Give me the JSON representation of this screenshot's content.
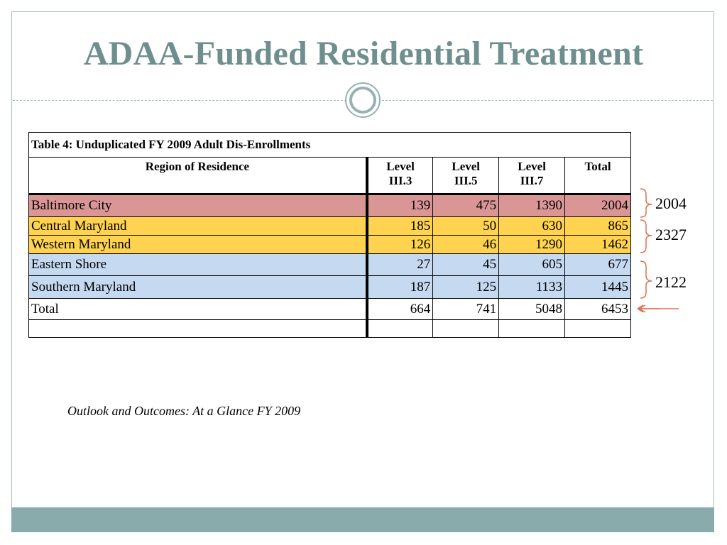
{
  "slide": {
    "title": "ADAA-Funded Residential Treatment",
    "source_caption": "Outlook and Outcomes: At a Glance FY 2009"
  },
  "table": {
    "caption": "Table 4:  Unduplicated FY 2009 Adult Dis-Enrollments",
    "headers": {
      "region": "Region of Residence",
      "l33": "Level III.3",
      "l35": "Level III.5",
      "l37": "Level III.7",
      "total": "Total"
    },
    "rows": [
      {
        "region": "Baltimore City",
        "l33": "139",
        "l35": "475",
        "l37": "1390",
        "total": "2004"
      },
      {
        "region": "Central Maryland",
        "l33": "185",
        "l35": "50",
        "l37": "630",
        "total": "865"
      },
      {
        "region": "Western Maryland",
        "l33": "126",
        "l35": "46",
        "l37": "1290",
        "total": "1462"
      },
      {
        "region": "Eastern Shore",
        "l33": "27",
        "l35": "45",
        "l37": "605",
        "total": "677"
      },
      {
        "region": "Southern Maryland",
        "l33": "187",
        "l35": "125",
        "l37": "1133",
        "total": "1445"
      }
    ],
    "total_row": {
      "region": "Total",
      "l33": "664",
      "l35": "741",
      "l37": "5048",
      "total": "6453"
    }
  },
  "annotations": {
    "group1": "2004",
    "group2": "2327",
    "group3": "2122"
  },
  "colors": {
    "title": "#6f8f8f",
    "footer_bar": "#8aabab",
    "row_baltimore": "#da9694",
    "row_central_western": "#ffd34f",
    "row_eastern_southern": "#c5d9f1",
    "annotation_pen": "#e07050"
  }
}
